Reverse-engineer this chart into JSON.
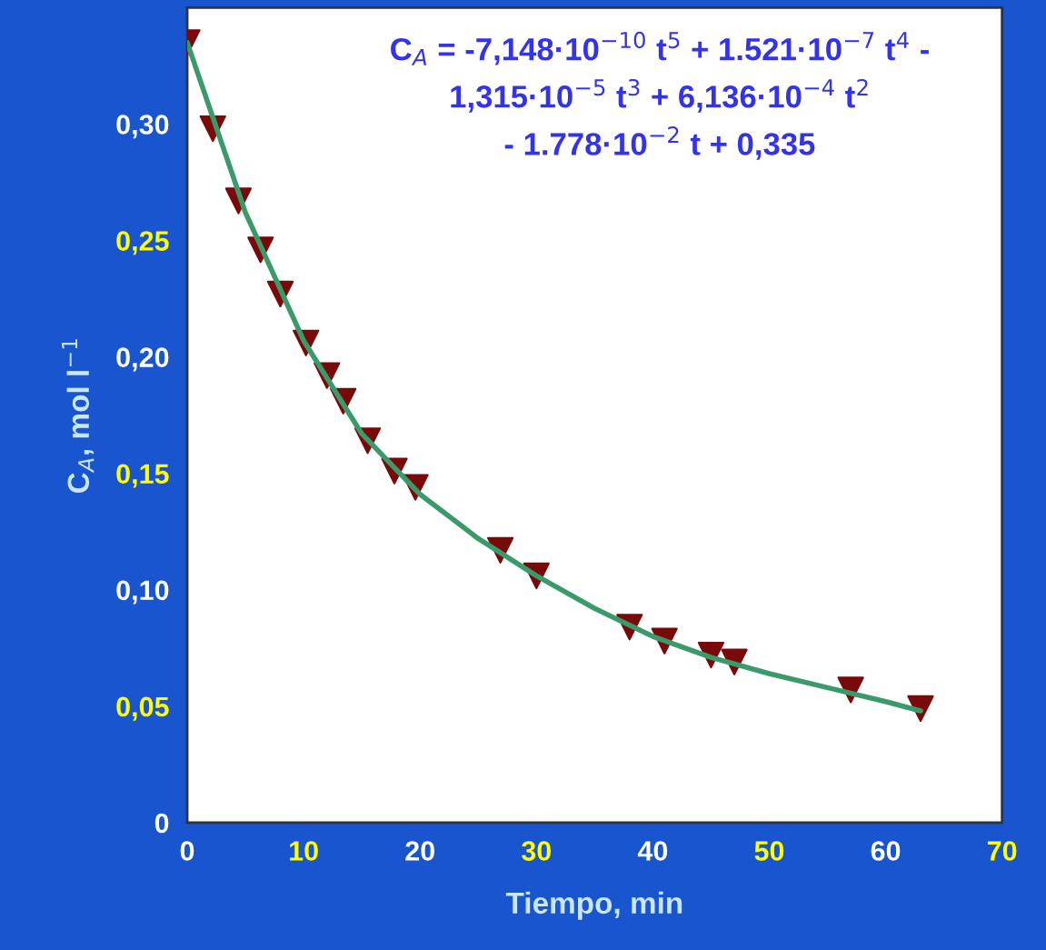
{
  "chart_data": {
    "type": "scatter",
    "xlabel": "Tiempo, min",
    "ylabel": "C$_{A}$, mol l$^{−1}$",
    "annotations": [
      "C$_{A}$ = -7,148·10$^{−10}$ t$^{5}$ + 1.521·10$^{−7}$ t$^{4}$ -\n1,315·10$^{−5}$ t$^{3}$ + 6,136·10$^{−4}$ t$^{2}$\n- 1.778·10$^{−2}$ t + 0,335"
    ],
    "series": [
      {
        "type": "line",
        "color": "#3a9a6a",
        "marker": "none",
        "line_style": "solid",
        "x": [
          0,
          5,
          10,
          15,
          20,
          25,
          30,
          35,
          40,
          45,
          50,
          55,
          60,
          63
        ],
        "values": [
          0.335,
          0.262,
          0.207,
          0.167,
          0.141,
          0.122,
          0.106,
          0.092,
          0.08,
          0.071,
          0.064,
          0.058,
          0.052,
          0.048
        ]
      },
      {
        "color": "#7a0a0a",
        "marker": "triangle",
        "x": [
          0,
          2.2,
          4.4,
          6.3,
          8.0,
          10.2,
          12.0,
          13.4,
          15.5,
          17.8,
          19.6,
          26.9,
          30.0,
          38.0,
          41.0,
          45.0,
          47.0,
          57.0,
          63.0
        ],
        "values": [
          0.335,
          0.298,
          0.267,
          0.246,
          0.227,
          0.206,
          0.192,
          0.181,
          0.164,
          0.151,
          0.144,
          0.117,
          0.106,
          0.084,
          0.078,
          0.072,
          0.069,
          0.057,
          0.049
        ]
      }
    ],
    "xlim": [
      0,
      70
    ],
    "xticks": [
      0,
      10,
      20,
      30,
      40,
      50,
      60,
      70
    ],
    "ylim": [
      0,
      0.35
    ],
    "yticks": [
      {
        "value": 0,
        "label": "0"
      },
      {
        "value": 0.05,
        "label": "0,05"
      },
      {
        "value": 0.1,
        "label": "0,10"
      },
      {
        "value": 0.15,
        "label": "0,15"
      },
      {
        "value": 0.2,
        "label": "0,20"
      },
      {
        "value": 0.25,
        "label": "0,25"
      },
      {
        "value": 0.3,
        "label": "0,30"
      }
    ],
    "grid": false
  }
}
